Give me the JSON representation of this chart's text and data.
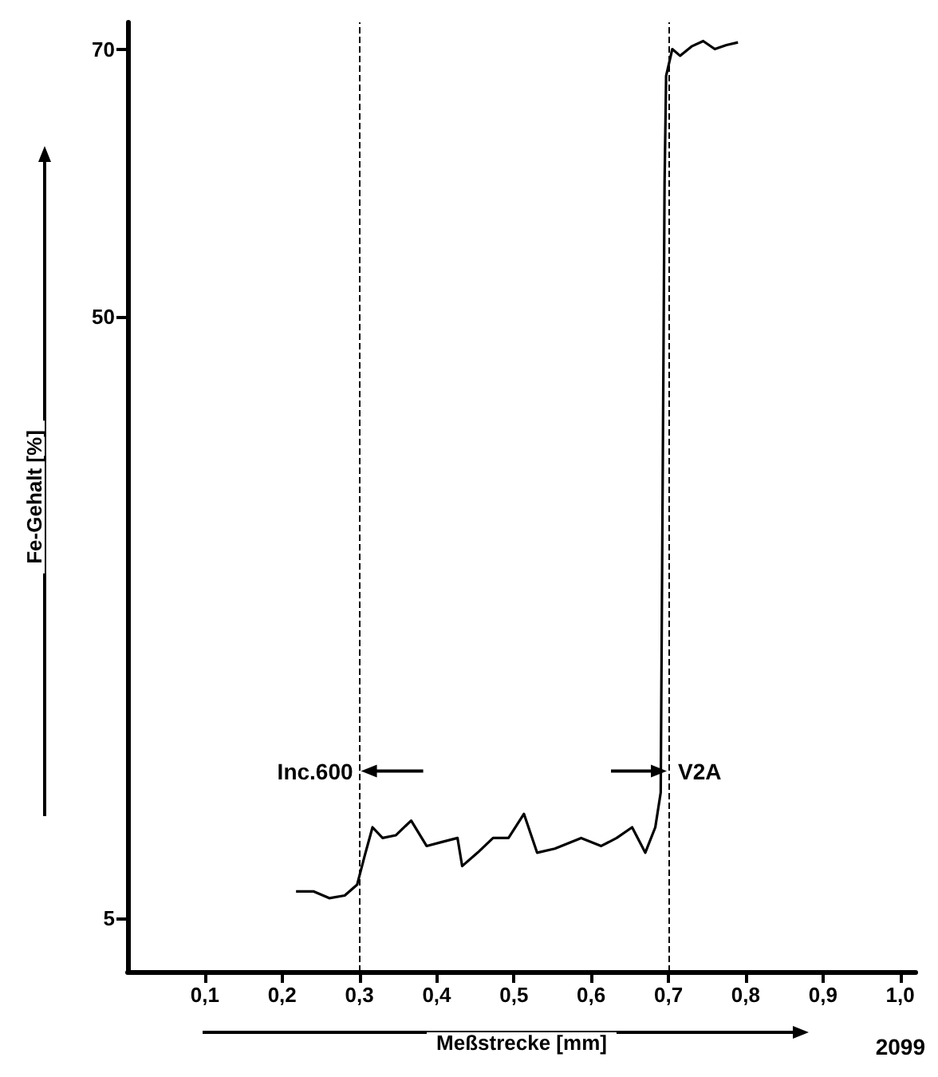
{
  "chart_data": {
    "type": "line",
    "xlabel": "Meßstrecke [mm]",
    "ylabel": "Fe-Gehalt [%]",
    "x": [
      0.218,
      0.241,
      0.261,
      0.281,
      0.297,
      0.307,
      0.317,
      0.33,
      0.347,
      0.367,
      0.387,
      0.407,
      0.427,
      0.433,
      0.453,
      0.473,
      0.493,
      0.513,
      0.53,
      0.553,
      0.587,
      0.613,
      0.633,
      0.653,
      0.67,
      0.683,
      0.69,
      0.695,
      0.697,
      0.705,
      0.715,
      0.73,
      0.745,
      0.76,
      0.775,
      0.79
    ],
    "series": [
      {
        "color": "#000000",
        "values": [
          7.0,
          7.0,
          6.5,
          6.7,
          7.5,
          9.7,
          11.8,
          11.0,
          11.2,
          12.3,
          10.4,
          10.7,
          11.0,
          8.9,
          9.9,
          11.0,
          11.0,
          12.8,
          9.9,
          10.2,
          11.0,
          10.4,
          11.0,
          11.8,
          9.9,
          11.8,
          14.4,
          60,
          68,
          70,
          69.5,
          70.2,
          70.6,
          70,
          70.3,
          70.5
        ]
      }
    ],
    "xlim": [
      0,
      1.02
    ],
    "xticks": [
      {
        "value": 0.1,
        "label": "0,1"
      },
      {
        "value": 0.2,
        "label": "0,2"
      },
      {
        "value": 0.3,
        "label": "0,3"
      },
      {
        "value": 0.4,
        "label": "0,4"
      },
      {
        "value": 0.5,
        "label": "0,5"
      },
      {
        "value": 0.6,
        "label": "0,6"
      },
      {
        "value": 0.7,
        "label": "0,7"
      },
      {
        "value": 0.8,
        "label": "0,8"
      },
      {
        "value": 0.9,
        "label": "0,9"
      },
      {
        "value": 1.0,
        "label": "1,0"
      }
    ],
    "ylim": [
      1,
      72
    ],
    "yticks": [
      5,
      50,
      70
    ],
    "ref_lines": [
      {
        "axis": "x",
        "value": 0.3,
        "line_style": "dashed",
        "color": "#000000"
      },
      {
        "axis": "x",
        "value": 0.7,
        "line_style": "dashed",
        "color": "#000000"
      }
    ],
    "annotations": [
      {
        "text": "Inc.600",
        "x": 0.3,
        "y": 16
      },
      {
        "text": "V2A",
        "x": 0.7,
        "y": 16
      },
      "2099"
    ],
    "grid": false,
    "marker": "none",
    "line_style": "solid"
  }
}
